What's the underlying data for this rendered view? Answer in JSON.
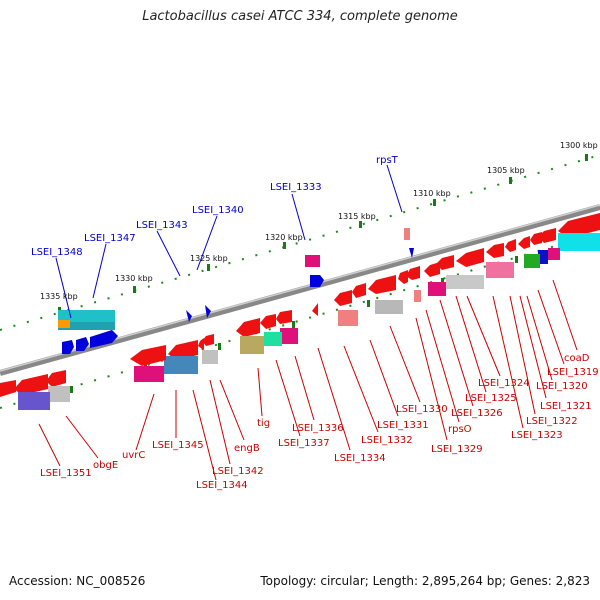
{
  "title": "Lactobacillus casei ATCC 334, complete genome",
  "footer": {
    "accession": "Accession: NC_008526",
    "topology": "Topology: circular; Length: 2,895,264 bp; Genes: 2,823"
  },
  "ticks": [
    "1300 kbp",
    "1305 kbp",
    "1310 kbp",
    "1315 kbp",
    "1320 kbp",
    "1325 kbp",
    "1330 kbp",
    "1335 kbp"
  ],
  "blue_labels": [
    "rpsT",
    "LSEI_1333",
    "LSEI_1340",
    "LSEI_1343",
    "LSEI_1347",
    "LSEI_1348"
  ],
  "red_labels": [
    "coaD",
    "LSEI_1319",
    "LSEI_1320",
    "LSEI_1321",
    "LSEI_1322",
    "LSEI_1323",
    "LSEI_1324",
    "LSEI_1325",
    "LSEI_1326",
    "rpsO",
    "LSEI_1329",
    "LSEI_1330",
    "LSEI_1331",
    "LSEI_1332",
    "LSEI_1334",
    "LSEI_1336",
    "LSEI_1337",
    "tig",
    "engB",
    "LSEI_1342",
    "LSEI_1344",
    "LSEI_1345",
    "uvrC",
    "obgE",
    "LSEI_1351"
  ]
}
